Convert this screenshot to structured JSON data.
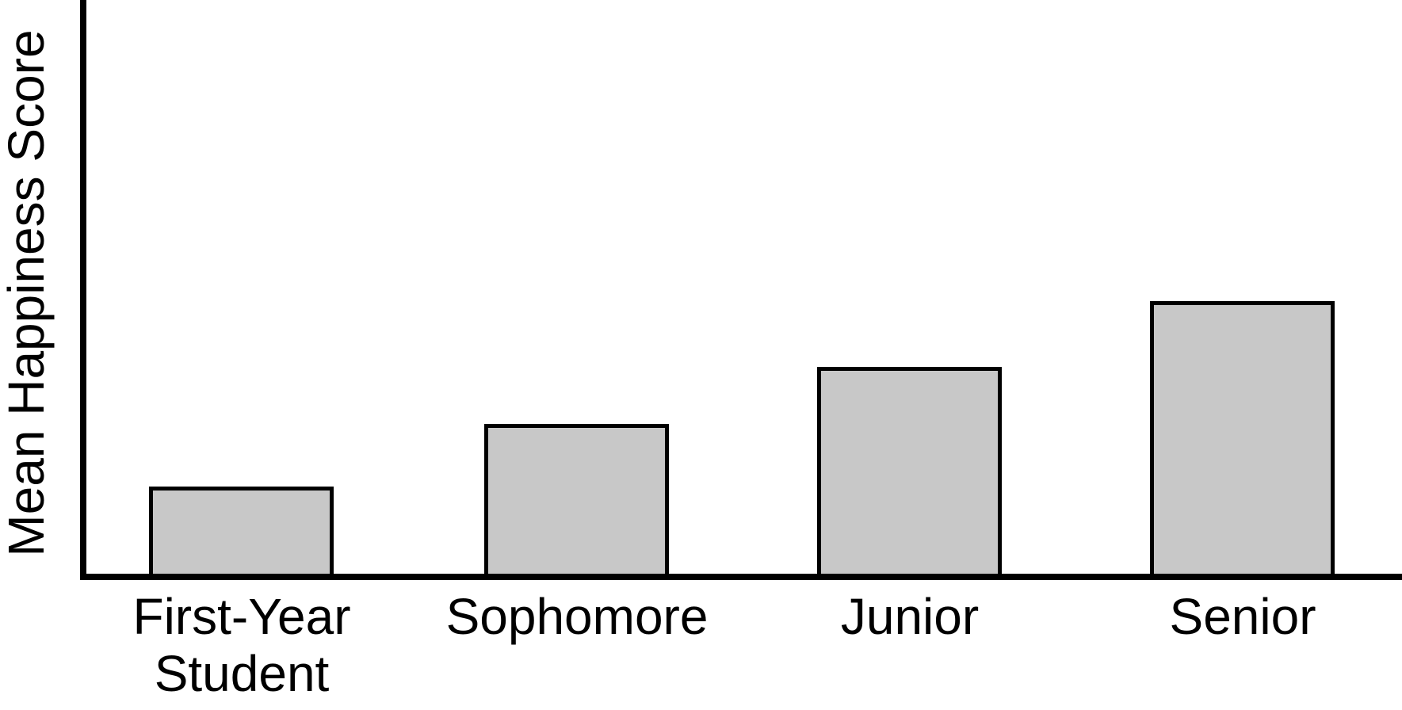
{
  "chart_data": {
    "type": "bar",
    "title": "",
    "ylabel": "Mean Happiness Score",
    "xlabel": "",
    "categories": [
      "First-Year Student",
      "Sophomore",
      "Junior",
      "Senior"
    ],
    "category_display_lines": [
      [
        "First-Year",
        "Student"
      ],
      [
        "Sophomore"
      ],
      [
        "Junior"
      ],
      [
        "Senior"
      ]
    ],
    "series": [
      {
        "name": "Mean Happiness Score",
        "values_fraction_of_axis_height": [
          0.152,
          0.261,
          0.36,
          0.475
        ]
      }
    ],
    "value_axis_ticks": [],
    "value_axis_numeric_labels_shown": false,
    "grid": false,
    "legend": false,
    "note": "Y-axis has no tick marks or numeric labels; bar values are estimated as fractions of the visible y-axis height. Bars increase monotonically from First-Year Student to Senior.",
    "colors": {
      "bar_fill": "#c8c8c8",
      "bar_stroke": "#000000",
      "axis": "#000000",
      "text": "#000000",
      "background": "#ffffff"
    }
  }
}
